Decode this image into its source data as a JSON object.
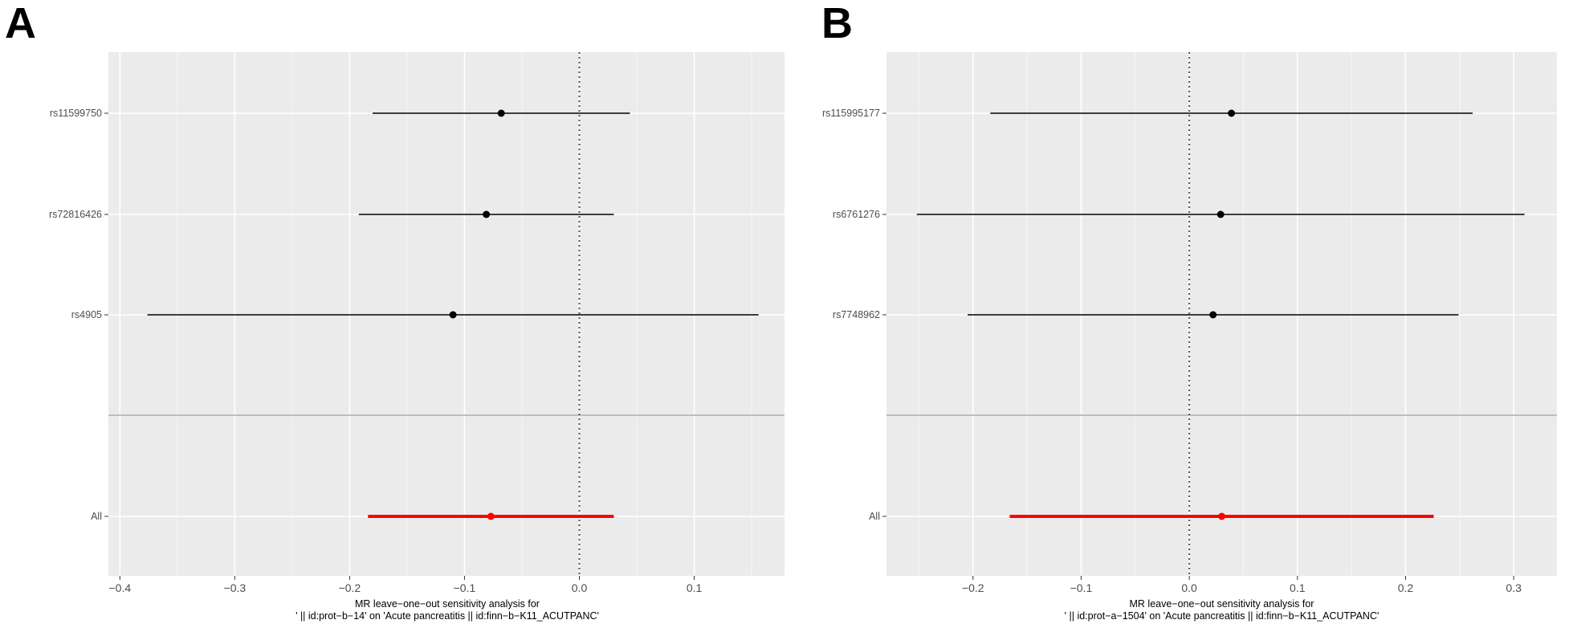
{
  "chart_data": [
    {
      "type": "forest",
      "panel_label": "A",
      "xlabel_lines": [
        "MR leave−one−out sensitivity analysis for",
        "' || id:prot−b−14' on 'Acute pancreatitis || id:finn−b−K11_ACUTPANC'"
      ],
      "ylabel": "",
      "xlim": [
        -0.41,
        0.18
      ],
      "x_ticks": [
        -0.4,
        -0.3,
        -0.2,
        -0.1,
        0.0,
        0.1
      ],
      "x_tick_labels": [
        "−0.4",
        "−0.3",
        "−0.2",
        "−0.1",
        "0.0",
        "0.1"
      ],
      "reference_line": 0,
      "grid": true,
      "colors": {
        "snp": "#000000",
        "overall": "#ff0000",
        "panel_bg": "#ebebeb",
        "grid": "#ffffff"
      },
      "rows": [
        {
          "label": "rs11599750",
          "estimate": -0.068,
          "lower": -0.18,
          "upper": 0.044,
          "overall": false
        },
        {
          "label": "rs72816426",
          "estimate": -0.081,
          "lower": -0.192,
          "upper": 0.03,
          "overall": false
        },
        {
          "label": "rs4905",
          "estimate": -0.11,
          "lower": -0.376,
          "upper": 0.156,
          "overall": false
        },
        {
          "label": "All",
          "estimate": -0.077,
          "lower": -0.184,
          "upper": 0.03,
          "overall": true
        }
      ]
    },
    {
      "type": "forest",
      "panel_label": "B",
      "xlabel_lines": [
        "MR leave−one−out sensitivity analysis for",
        "' || id:prot−a−1504' on 'Acute pancreatitis || id:finn−b−K11_ACUTPANC'"
      ],
      "ylabel": "",
      "xlim": [
        -0.28,
        0.34
      ],
      "x_ticks": [
        -0.2,
        -0.1,
        0.0,
        0.1,
        0.2,
        0.3
      ],
      "x_tick_labels": [
        "−0.2",
        "−0.1",
        "0.0",
        "0.1",
        "0.2",
        "0.3"
      ],
      "reference_line": 0,
      "grid": true,
      "colors": {
        "snp": "#000000",
        "overall": "#ff0000",
        "panel_bg": "#ebebeb",
        "grid": "#ffffff"
      },
      "rows": [
        {
          "label": "rs115995177",
          "estimate": 0.039,
          "lower": -0.184,
          "upper": 0.262,
          "overall": false
        },
        {
          "label": "rs6761276",
          "estimate": 0.029,
          "lower": -0.252,
          "upper": 0.31,
          "overall": false
        },
        {
          "label": "rs7748962",
          "estimate": 0.022,
          "lower": -0.205,
          "upper": 0.249,
          "overall": false
        },
        {
          "label": "All",
          "estimate": 0.03,
          "lower": -0.166,
          "upper": 0.226,
          "overall": true
        }
      ]
    }
  ]
}
